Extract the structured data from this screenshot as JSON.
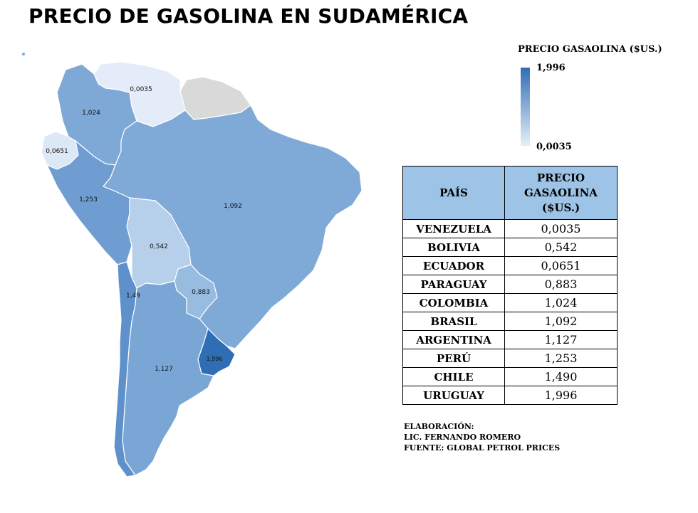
{
  "title": "PRECIO DE GASOLINA EN SUDAMÉRICA",
  "legend": {
    "title": "PRECIO GASAOLINA ($US.)",
    "max_label": "1,996",
    "min_label": "0,0035",
    "color_high": "#2f6eb5",
    "color_low": "#e6eff9"
  },
  "map": {
    "no_data_color": "#d9d9d9",
    "regions": [
      {
        "id": "venezuela",
        "label": "0,0035",
        "color": "#e3ecf8"
      },
      {
        "id": "colombia",
        "label": "1,024",
        "color": "#7ea8d6"
      },
      {
        "id": "ecuador",
        "label": "0,0651",
        "color": "#dde8f6"
      },
      {
        "id": "peru",
        "label": "1,253",
        "color": "#6f9dd1"
      },
      {
        "id": "brasil",
        "label": "1,092",
        "color": "#7fa9d7"
      },
      {
        "id": "bolivia",
        "label": "0,542",
        "color": "#b6cfea"
      },
      {
        "id": "paraguay",
        "label": "0,883",
        "color": "#98bbe0"
      },
      {
        "id": "chile",
        "label": "1,49",
        "color": "#5e91cb"
      },
      {
        "id": "argentina",
        "label": "1,127",
        "color": "#7aa6d6"
      },
      {
        "id": "uruguay",
        "label": "1,996",
        "color": "#2f6eb5"
      },
      {
        "id": "guianas",
        "label": "",
        "color": "#d9d9d9"
      }
    ]
  },
  "table": {
    "header_country": "PAÍS",
    "header_price_lines": [
      "PRECIO",
      "GASAOLINA",
      "($US.)"
    ],
    "header_bg": "#9dc3e6",
    "rows": [
      {
        "country": "VENEZUELA",
        "price": "0,0035"
      },
      {
        "country": "BOLIVIA",
        "price": "0,542"
      },
      {
        "country": "ECUADOR",
        "price": "0,0651"
      },
      {
        "country": "PARAGUAY",
        "price": "0,883"
      },
      {
        "country": "COLOMBIA",
        "price": "1,024"
      },
      {
        "country": "BRASIL",
        "price": "1,092"
      },
      {
        "country": "ARGENTINA",
        "price": "1,127"
      },
      {
        "country": "PERÚ",
        "price": "1,253"
      },
      {
        "country": "CHILE",
        "price": "1,490"
      },
      {
        "country": "URUGUAY",
        "price": "1,996"
      }
    ]
  },
  "credits": {
    "line1": "ELABORACIÓN:",
    "line2": "LIC. FERNANDO ROMERO",
    "line3": "FUENTE: GLOBAL PETROL PRICES"
  }
}
